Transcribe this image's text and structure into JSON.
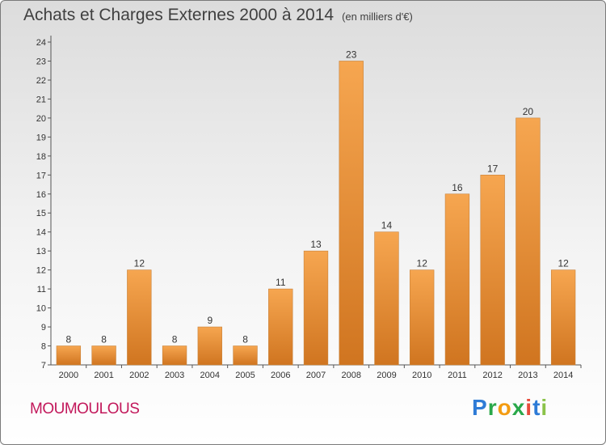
{
  "title": "Achats et Charges Externes 2000 à 2014",
  "subtitle": "(en milliers d'€)",
  "commune": "MOUMOULOUS",
  "logo": {
    "letters": [
      "P",
      "r",
      "o",
      "x",
      "i",
      "t",
      "i"
    ]
  },
  "colors": {
    "bar_light": "#f6a650",
    "bar_dark": "#d07520",
    "title": "#404040",
    "commune": "#c2185b"
  },
  "chart_data": {
    "type": "bar",
    "title": "Achats et Charges Externes 2000 à 2014",
    "subtitle": "(en milliers d'€)",
    "categories": [
      "2000",
      "2001",
      "2002",
      "2003",
      "2004",
      "2005",
      "2006",
      "2007",
      "2008",
      "2009",
      "2010",
      "2011",
      "2012",
      "2013",
      "2014"
    ],
    "values": [
      8,
      8,
      12,
      8,
      9,
      8,
      11,
      13,
      23,
      14,
      12,
      16,
      17,
      20,
      12
    ],
    "ylim": [
      7,
      24
    ],
    "yticks": [
      7,
      8,
      9,
      10,
      11,
      12,
      13,
      14,
      15,
      16,
      17,
      18,
      19,
      20,
      21,
      22,
      23,
      24
    ],
    "grid": false,
    "data_labels": true
  }
}
